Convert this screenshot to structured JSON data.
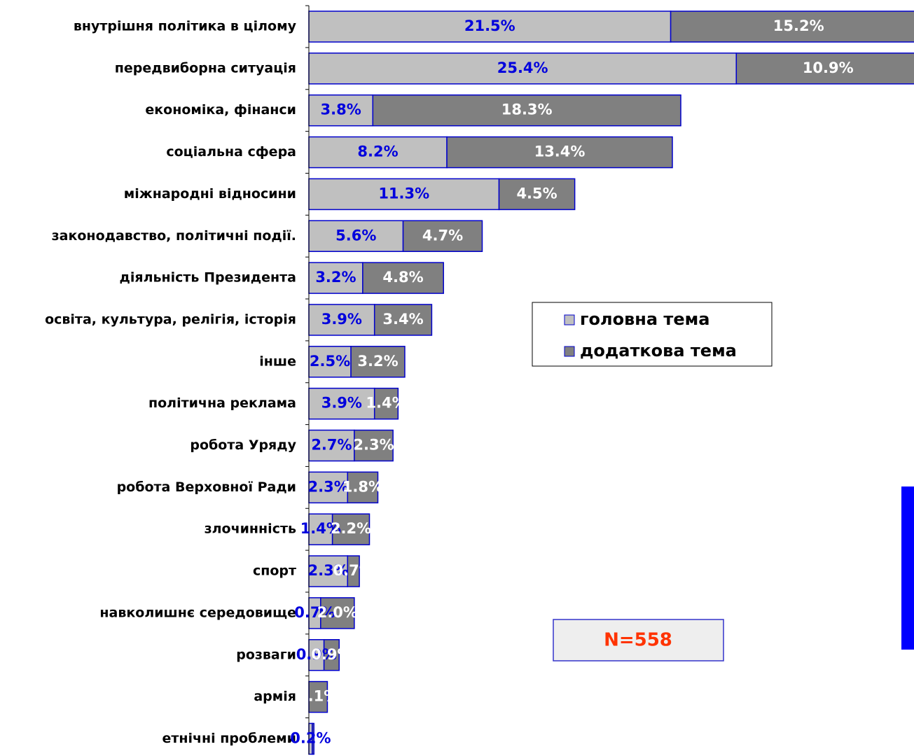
{
  "chart_data": {
    "type": "stacked_barh",
    "categories": [
      "внутрішня політика в цілому",
      "передвиборна ситуація",
      "економіка, фінанси",
      "соціальна сфера",
      "міжнародні відносини",
      "законодавство, політичні події.",
      "діяльність Президента",
      "освіта, культура, релігія, історія",
      "інше",
      "політична реклама",
      "робота Уряду",
      "робота Верховної Ради",
      "злочинність",
      "спорт",
      "навколишнє середовище",
      "розваги",
      "армія",
      "етнічні проблеми"
    ],
    "series": [
      {
        "name": "головна тема",
        "color": "#c0c0c0",
        "label_color": "#0000dd",
        "values": [
          21.5,
          25.4,
          3.8,
          8.2,
          11.3,
          5.6,
          3.2,
          3.9,
          2.5,
          3.9,
          2.7,
          2.3,
          1.4,
          2.3,
          0.7,
          0.9,
          0,
          0.2
        ],
        "value_labels": [
          "21.5%",
          "25.4%",
          "3.8%",
          "8.2%",
          "11.3%",
          "5.6%",
          "3.2%",
          "3.9%",
          "2.5%",
          "3.9%",
          "2.7%",
          "2.3%",
          "1.4%",
          "2.3%",
          "0.7%",
          "0.9%",
          null,
          "0.2%"
        ]
      },
      {
        "name": "додаткова тема",
        "color": "#808080",
        "label_color": "#ffffff",
        "values": [
          15.2,
          10.9,
          18.3,
          13.4,
          4.5,
          4.7,
          4.8,
          3.4,
          3.2,
          1.4,
          2.3,
          1.8,
          2.2,
          0.7,
          2.0,
          0.9,
          1.1,
          0.1
        ],
        "value_labels": [
          "15.2%",
          "10.9%",
          "18.3%",
          "13.4%",
          "4.5%",
          "4.7%",
          "4.8%",
          "3.4%",
          "3.2%",
          "1.4%",
          "2.3%",
          "1.8%",
          "2.2%",
          "0.7%",
          "2.0%",
          "0.9%",
          "1.1%",
          null
        ]
      }
    ],
    "xlim": [
      0,
      36
    ],
    "annotation": "N=558"
  }
}
